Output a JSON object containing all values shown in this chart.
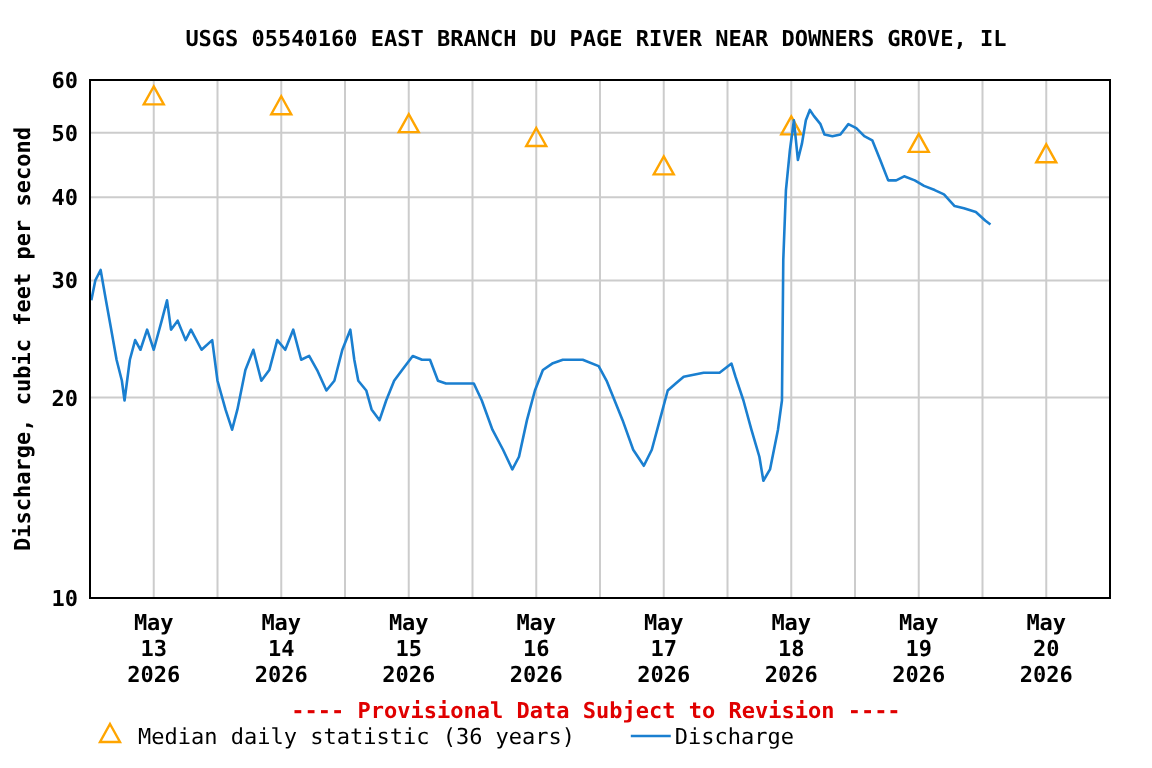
{
  "chart_data": {
    "type": "line",
    "title": "USGS 05540160 EAST BRANCH DU PAGE RIVER NEAR DOWNERS GROVE, IL",
    "ylabel": "Discharge, cubic feet per second",
    "log": true,
    "grid": true,
    "legend": "bottom",
    "annotations": [
      "---- Provisional Data Subject to Revision ----"
    ],
    "xlim": [
      "2026-05-13T00:00",
      "2026-05-21T00:00"
    ],
    "xticks": [
      {
        "value": "2026-05-13T12:00",
        "label": "May\n13\n2026"
      },
      {
        "value": "2026-05-14T00:00",
        "label": null
      },
      {
        "value": "2026-05-14T12:00",
        "label": "May\n14\n2026"
      },
      {
        "value": "2026-05-15T00:00",
        "label": null
      },
      {
        "value": "2026-05-15T12:00",
        "label": "May\n15\n2026"
      },
      {
        "value": "2026-05-16T00:00",
        "label": null
      },
      {
        "value": "2026-05-16T12:00",
        "label": "May\n16\n2026"
      },
      {
        "value": "2026-05-17T00:00",
        "label": null
      },
      {
        "value": "2026-05-17T12:00",
        "label": "May\n17\n2026"
      },
      {
        "value": "2026-05-18T00:00",
        "label": null
      },
      {
        "value": "2026-05-18T12:00",
        "label": "May\n18\n2026"
      },
      {
        "value": "2026-05-19T00:00",
        "label": null
      },
      {
        "value": "2026-05-19T12:00",
        "label": "May\n19\n2026"
      },
      {
        "value": "2026-05-20T00:00",
        "label": null
      },
      {
        "value": "2026-05-20T12:00",
        "label": "May\n20\n2026"
      }
    ],
    "ylim": [
      10,
      60
    ],
    "yticks": [
      10,
      20,
      30,
      40,
      50,
      60
    ],
    "series": [
      {
        "name": "Median daily statistic (36 years)",
        "type": "scatter",
        "marker": "triangle",
        "color": "#ffa500",
        "x": [
          "2026-05-13T12:00",
          "2026-05-14T12:00",
          "2026-05-15T12:00",
          "2026-05-16T12:00",
          "2026-05-17T12:00",
          "2026-05-18T12:00",
          "2026-05-19T12:00",
          "2026-05-20T12:00"
        ],
        "values": [
          56.7,
          54.8,
          51.5,
          49.1,
          44.5,
          51.1,
          48.1,
          46.4
        ]
      },
      {
        "name": "Discharge",
        "marker": "none",
        "color": "#1a7fd0",
        "x": [
          "2026-05-13T00:15",
          "2026-05-13T01:00",
          "2026-05-13T02:00",
          "2026-05-13T03:00",
          "2026-05-13T04:00",
          "2026-05-13T05:00",
          "2026-05-13T06:00",
          "2026-05-13T06:30",
          "2026-05-13T07:30",
          "2026-05-13T08:30",
          "2026-05-13T09:30",
          "2026-05-13T10:45",
          "2026-05-13T12:00",
          "2026-05-13T13:30",
          "2026-05-13T14:30",
          "2026-05-13T15:15",
          "2026-05-13T16:30",
          "2026-05-13T18:00",
          "2026-05-13T19:00",
          "2026-05-13T21:00",
          "2026-05-13T23:00",
          "2026-05-14T00:00",
          "2026-05-14T01:30",
          "2026-05-14T02:45",
          "2026-05-14T03:45",
          "2026-05-14T05:15",
          "2026-05-14T06:45",
          "2026-05-14T08:15",
          "2026-05-14T09:45",
          "2026-05-14T11:15",
          "2026-05-14T12:45",
          "2026-05-14T14:15",
          "2026-05-14T15:45",
          "2026-05-14T17:15",
          "2026-05-14T18:45",
          "2026-05-14T20:30",
          "2026-05-14T22:00",
          "2026-05-14T23:30",
          "2026-05-15T01:00",
          "2026-05-15T01:45",
          "2026-05-15T02:30",
          "2026-05-15T04:00",
          "2026-05-15T05:00",
          "2026-05-15T06:30",
          "2026-05-15T07:45",
          "2026-05-15T09:15",
          "2026-05-15T10:45",
          "2026-05-15T12:45",
          "2026-05-15T14:30",
          "2026-05-15T16:00",
          "2026-05-15T17:30",
          "2026-05-15T19:00",
          "2026-05-15T22:00",
          "2026-05-16T00:15",
          "2026-05-16T01:45",
          "2026-05-16T03:45",
          "2026-05-16T05:45",
          "2026-05-16T07:30",
          "2026-05-16T08:45",
          "2026-05-16T10:15",
          "2026-05-16T11:45",
          "2026-05-16T13:15",
          "2026-05-16T15:00",
          "2026-05-16T17:00",
          "2026-05-16T20:45",
          "2026-05-16T23:45",
          "2026-05-17T01:15",
          "2026-05-17T02:45",
          "2026-05-17T04:15",
          "2026-05-17T06:15",
          "2026-05-17T08:15",
          "2026-05-17T09:45",
          "2026-05-17T11:15",
          "2026-05-17T12:45",
          "2026-05-17T14:15",
          "2026-05-17T15:45",
          "2026-05-17T19:30",
          "2026-05-17T22:30",
          "2026-05-18T00:45",
          "2026-05-18T01:30",
          "2026-05-18T03:00",
          "2026-05-18T04:30",
          "2026-05-18T06:00",
          "2026-05-18T06:45",
          "2026-05-18T08:00",
          "2026-05-18T09:30",
          "2026-05-18T10:15",
          "2026-05-18T10:30",
          "2026-05-18T11:00",
          "2026-05-18T11:45",
          "2026-05-18T12:30",
          "2026-05-18T13:15",
          "2026-05-18T14:00",
          "2026-05-18T14:45",
          "2026-05-18T15:30",
          "2026-05-18T16:15",
          "2026-05-18T17:30",
          "2026-05-18T18:15",
          "2026-05-18T19:45",
          "2026-05-18T21:15",
          "2026-05-18T22:45",
          "2026-05-19T00:15",
          "2026-05-19T01:45",
          "2026-05-19T03:15",
          "2026-05-19T04:45",
          "2026-05-19T06:15",
          "2026-05-19T07:45",
          "2026-05-19T09:15",
          "2026-05-19T11:15",
          "2026-05-19T13:00",
          "2026-05-19T15:00",
          "2026-05-19T16:45",
          "2026-05-19T18:45",
          "2026-05-19T20:30",
          "2026-05-19T22:45",
          "2026-05-20T00:30",
          "2026-05-20T01:30"
        ],
        "values": [
          28.0,
          30.0,
          31.1,
          28.0,
          25.3,
          22.8,
          21.2,
          19.8,
          22.8,
          24.4,
          23.6,
          25.3,
          23.6,
          26.1,
          28.0,
          25.3,
          26.1,
          24.4,
          25.3,
          23.6,
          24.4,
          21.2,
          19.2,
          17.9,
          19.2,
          22.0,
          23.6,
          21.2,
          22.0,
          24.4,
          23.6,
          25.3,
          22.8,
          23.1,
          22.0,
          20.5,
          21.2,
          23.6,
          25.3,
          22.8,
          21.2,
          20.5,
          19.2,
          18.5,
          19.8,
          21.2,
          22.0,
          23.1,
          22.8,
          22.8,
          21.2,
          21.0,
          21.0,
          21.0,
          19.8,
          17.9,
          16.7,
          15.6,
          16.3,
          18.5,
          20.5,
          22.0,
          22.5,
          22.8,
          22.8,
          22.3,
          21.2,
          19.8,
          18.5,
          16.7,
          15.8,
          16.7,
          18.5,
          20.5,
          21.0,
          21.5,
          21.8,
          21.8,
          22.5,
          21.5,
          19.8,
          17.9,
          16.3,
          15.0,
          15.6,
          17.9,
          19.8,
          32.2,
          41.0,
          47.1,
          52.2,
          45.5,
          48.1,
          52.2,
          54.1,
          53.0,
          51.5,
          49.7,
          49.4,
          49.7,
          51.5,
          50.8,
          49.4,
          48.7,
          45.5,
          42.4,
          42.4,
          43.0,
          42.4,
          41.6,
          41.0,
          40.4,
          38.8,
          38.5,
          38.0,
          36.9,
          36.4
        ]
      }
    ]
  }
}
